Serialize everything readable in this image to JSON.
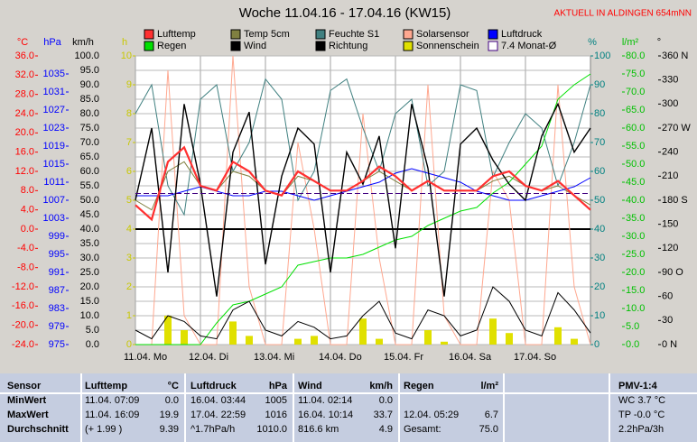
{
  "chart_data": {
    "type": "line",
    "title": "Woche 11.04.16 - 17.04.16 (KW15)",
    "subtitle": "AKTUELL IN ALDINGEN 654mNN",
    "xlim": [
      0,
      7
    ],
    "xticks": [
      {
        "value": 0,
        "label": "11.04. Mo"
      },
      {
        "value": 1,
        "label": "12.04. Di"
      },
      {
        "value": 2,
        "label": "13.04. Mi"
      },
      {
        "value": 3,
        "label": "14.04. Do"
      },
      {
        "value": 4,
        "label": "15.04. Fr"
      },
      {
        "value": 5,
        "label": "16.04. Sa"
      },
      {
        "value": 6,
        "label": "17.04. So"
      }
    ],
    "grid": true,
    "x": [
      0,
      0.25,
      0.5,
      0.75,
      1,
      1.25,
      1.5,
      1.75,
      2,
      2.25,
      2.5,
      2.75,
      3,
      3.25,
      3.5,
      3.75,
      4,
      4.25,
      4.5,
      4.75,
      5,
      5.25,
      5.5,
      5.75,
      6,
      6.25,
      6.5,
      6.75,
      7
    ],
    "axes": [
      {
        "label": "°C",
        "color": "#ff0000",
        "lim": [
          -24,
          36
        ],
        "ticks": [
          {
            "value": 36,
            "label": "36.0"
          },
          {
            "value": 32,
            "label": "32.0"
          },
          {
            "value": 28,
            "label": "28.0"
          },
          {
            "value": 24,
            "label": "24.0"
          },
          {
            "value": 20,
            "label": "20.0"
          },
          {
            "value": 16,
            "label": "16.0"
          },
          {
            "value": 12,
            "label": "12.0"
          },
          {
            "value": 8,
            "label": "8.0"
          },
          {
            "value": 4,
            "label": "4.0"
          },
          {
            "value": 0,
            "label": "0.0"
          },
          {
            "value": -4,
            "label": "-4.0"
          },
          {
            "value": -8,
            "label": "-8.0"
          },
          {
            "value": -12,
            "label": "-12.0"
          },
          {
            "value": -16,
            "label": "-16.0"
          },
          {
            "value": -20,
            "label": "-20.0"
          },
          {
            "value": -24,
            "label": "-24.0"
          }
        ]
      },
      {
        "label": "hPa",
        "color": "#0000ff",
        "lim": [
          975,
          1039
        ],
        "ticks": [
          1035,
          1031,
          1027,
          1023,
          1019,
          1015,
          1011,
          1007,
          1003,
          999,
          995,
          991,
          987,
          983,
          979,
          975
        ]
      },
      {
        "label": "km/h",
        "color": "#000000",
        "lim": [
          0,
          100
        ],
        "ticks": [
          {
            "value": 100,
            "label": "100.0"
          },
          {
            "value": 95,
            "label": "95.0"
          },
          {
            "value": 90,
            "label": "90.0"
          },
          {
            "value": 85,
            "label": "85.0"
          },
          {
            "value": 80,
            "label": "80.0"
          },
          {
            "value": 75,
            "label": "75.0"
          },
          {
            "value": 70,
            "label": "70.0"
          },
          {
            "value": 65,
            "label": "65.0"
          },
          {
            "value": 60,
            "label": "60.0"
          },
          {
            "value": 55,
            "label": "55.0"
          },
          {
            "value": 50,
            "label": "50.0"
          },
          {
            "value": 45,
            "label": "45.0"
          },
          {
            "value": 40,
            "label": "40.0"
          },
          {
            "value": 35,
            "label": "35.0"
          },
          {
            "value": 30,
            "label": "30.0"
          },
          {
            "value": 25,
            "label": "25.0"
          },
          {
            "value": 20,
            "label": "20.0"
          },
          {
            "value": 15,
            "label": "15.0"
          },
          {
            "value": 10,
            "label": "10.0"
          },
          {
            "value": 5,
            "label": "5.0"
          },
          {
            "value": 0,
            "label": "0.0"
          }
        ]
      },
      {
        "label": "h",
        "color": "#c8c800",
        "lim": [
          0,
          10
        ],
        "ticks": [
          10,
          9,
          8,
          7,
          6,
          5,
          4,
          3,
          2,
          1,
          0
        ]
      },
      {
        "label": "%",
        "color": "#008080",
        "lim": [
          0,
          100
        ],
        "ticks": [
          100,
          90,
          80,
          70,
          60,
          50,
          40,
          30,
          20,
          10,
          0
        ]
      },
      {
        "label": "l/m²",
        "color": "#00c000",
        "lim": [
          0,
          80
        ],
        "ticks": [
          {
            "value": 80,
            "label": "80.0"
          },
          {
            "value": 75,
            "label": "75.0"
          },
          {
            "value": 70,
            "label": "70.0"
          },
          {
            "value": 65,
            "label": "65.0"
          },
          {
            "value": 60,
            "label": "60.0"
          },
          {
            "value": 55,
            "label": "55.0"
          },
          {
            "value": 50,
            "label": "50.0"
          },
          {
            "value": 45,
            "label": "45.0"
          },
          {
            "value": 40,
            "label": "40.0"
          },
          {
            "value": 35,
            "label": "35.0"
          },
          {
            "value": 30,
            "label": "30.0"
          },
          {
            "value": 25,
            "label": "25.0"
          },
          {
            "value": 20,
            "label": "20.0"
          },
          {
            "value": 15,
            "label": "15.0"
          },
          {
            "value": 10,
            "label": "10.0"
          },
          {
            "value": 5,
            "label": "5.0"
          },
          {
            "value": 0,
            "label": "0.0"
          }
        ]
      },
      {
        "label": "°",
        "color": "#000000",
        "lim": [
          0,
          360
        ],
        "ticks": [
          {
            "value": 360,
            "label": "360 N"
          },
          330,
          300,
          {
            "value": 270,
            "label": "270 W"
          },
          240,
          210,
          {
            "value": 180,
            "label": "180 S"
          },
          150,
          120,
          {
            "value": 90,
            "label": "90 O"
          },
          60,
          30,
          {
            "value": 0,
            "label": "0 N"
          }
        ]
      }
    ],
    "series": [
      {
        "name": "Lufttemp",
        "color": "#ff3030",
        "axis": 0,
        "values": [
          5,
          2,
          14,
          17,
          9,
          8,
          14,
          12,
          8,
          7,
          12,
          10,
          8,
          8,
          10,
          13,
          11,
          8,
          10,
          8,
          8,
          8,
          11,
          12,
          9,
          8,
          10,
          7,
          4
        ]
      },
      {
        "name": "Temp 5cm",
        "color": "#808040",
        "axis": 0,
        "values": [
          6,
          4,
          12,
          14,
          9,
          8,
          12,
          11,
          8,
          7,
          11,
          10,
          8,
          8,
          10,
          12,
          10,
          8,
          10,
          8,
          8,
          8,
          10,
          11,
          9,
          8,
          9,
          7,
          5
        ]
      },
      {
        "name": "Feuchte S1",
        "color": "#408080",
        "axis": 4,
        "values": [
          80,
          90,
          55,
          45,
          85,
          90,
          60,
          70,
          92,
          85,
          50,
          60,
          88,
          92,
          75,
          60,
          80,
          85,
          55,
          60,
          90,
          88,
          58,
          70,
          80,
          75,
          55,
          70,
          90
        ]
      },
      {
        "name": "Solarsensor",
        "color": "#ffa890",
        "axis": 4,
        "values": [
          0,
          0,
          95,
          10,
          0,
          0,
          100,
          20,
          0,
          0,
          70,
          40,
          0,
          0,
          80,
          30,
          0,
          0,
          90,
          10,
          0,
          0,
          60,
          50,
          0,
          0,
          90,
          20,
          0
        ]
      },
      {
        "name": "Luftdruck",
        "color": "#0000ff",
        "axis": 1,
        "values": [
          1008,
          1008,
          1008,
          1009,
          1010,
          1009,
          1008,
          1008,
          1009,
          1009,
          1008,
          1007,
          1008,
          1009,
          1010,
          1011,
          1013,
          1014,
          1013,
          1012,
          1011,
          1009,
          1008,
          1007,
          1007,
          1008,
          1009,
          1010,
          1012
        ]
      },
      {
        "name": "Regen",
        "color": "#00e000",
        "axis": 5,
        "values": [
          0,
          0,
          0,
          0,
          0,
          6,
          11,
          12,
          14,
          16,
          22,
          23,
          24,
          24,
          25,
          27,
          29,
          30,
          33,
          35,
          37,
          38,
          42,
          45,
          50,
          55,
          68,
          72,
          75
        ]
      },
      {
        "name": "Wind",
        "color": "#000000",
        "axis": 2,
        "values": [
          5,
          2,
          10,
          8,
          3,
          2,
          12,
          15,
          5,
          3,
          8,
          6,
          2,
          3,
          10,
          15,
          4,
          2,
          12,
          10,
          3,
          5,
          20,
          15,
          5,
          3,
          18,
          12,
          4
        ]
      },
      {
        "name": "Richtung",
        "color": "#000000",
        "axis": 6,
        "values": [
          180,
          270,
          90,
          300,
          200,
          60,
          240,
          290,
          100,
          210,
          270,
          250,
          90,
          240,
          200,
          260,
          120,
          300,
          220,
          60,
          250,
          270,
          230,
          200,
          180,
          260,
          300,
          240,
          270
        ]
      },
      {
        "name": "Sonnenschein",
        "color": "#e0e000",
        "axis": 3,
        "style": "bar",
        "values": [
          0,
          0,
          1,
          0.5,
          0,
          0,
          0.8,
          0.3,
          0,
          0,
          0.2,
          0.3,
          0,
          0,
          0.9,
          0.2,
          0,
          0,
          0.5,
          0.1,
          0,
          0,
          0.9,
          0.4,
          0,
          0,
          0.6,
          0.2,
          0
        ]
      },
      {
        "name": "7.4 Monat-Ø",
        "color": "#400080",
        "axis": 0,
        "style": "hline",
        "value": 7.4
      }
    ]
  },
  "table": {
    "header": [
      "Sensor",
      "Lufttemp",
      "°C",
      "Luftdruck",
      "hPa",
      "Wind",
      "km/h",
      "Regen",
      "l/m²",
      "PMV-1:4"
    ],
    "rows": [
      [
        "MinWert",
        "11.04. 07:09",
        "0.0",
        "16.04. 03:44",
        "1005",
        "11.04. 02:14",
        "0.0",
        null,
        null,
        "WC 3.7 °C"
      ],
      [
        "MaxWert",
        "11.04. 16:09",
        "19.9",
        "17.04. 22:59",
        "1016",
        "16.04. 10:14",
        "33.7",
        "12.04. 05:29",
        "6.7",
        "TP -0.0 °C"
      ],
      [
        "Durchschnitt",
        "(+ 1.99 )",
        "9.39",
        "^1.7hPa/h",
        "1010.0",
        "816.6 km",
        "4.9",
        "Gesamt:",
        "75.0",
        "2.2hPa/3h"
      ]
    ]
  }
}
